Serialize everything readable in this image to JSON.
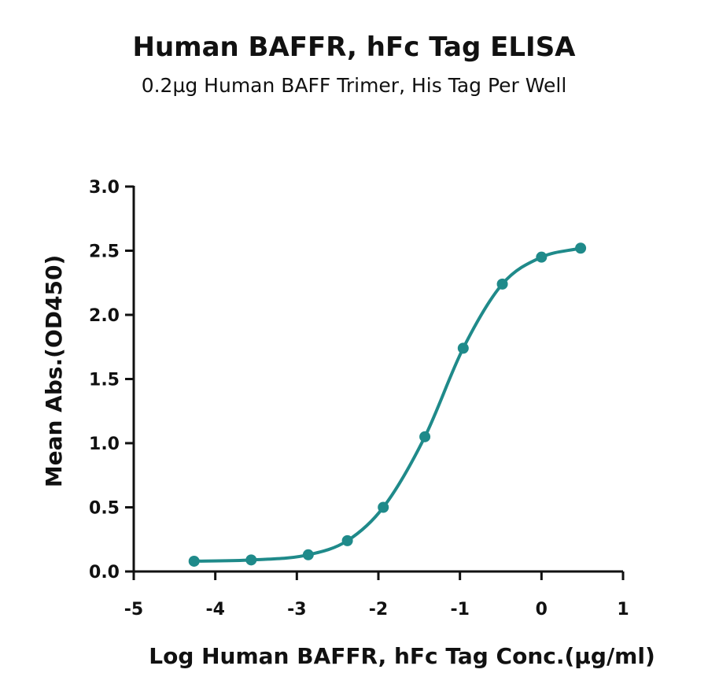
{
  "chart_data": {
    "type": "line",
    "title": "Human BAFFR, hFc Tag ELISA",
    "subtitle": "0.2µg Human BAFF Trimer, His Tag Per Well",
    "xlabel": "Log Human BAFFR, hFc Tag Conc.(µg/ml)",
    "ylabel": "Mean Abs.(OD450)",
    "xlim": [
      -5,
      1
    ],
    "ylim": [
      0,
      3
    ],
    "x_ticks": [
      -5,
      -4,
      -3,
      -2,
      -1,
      0,
      1
    ],
    "x_tick_labels": [
      "-5",
      "-4",
      "-3",
      "-2",
      "-1",
      "0",
      "1"
    ],
    "y_ticks": [
      0,
      0.5,
      1,
      1.5,
      2,
      2.5,
      3
    ],
    "y_tick_labels": [
      "0.0",
      "0.5",
      "1.0",
      "1.5",
      "2.0",
      "2.5",
      "3.0"
    ],
    "grid": false,
    "color": "#1f8a8a",
    "series": [
      {
        "x": [
          -4.26,
          -3.56,
          -2.86,
          -2.38,
          -1.94,
          -1.43,
          -0.96,
          -0.48,
          0.0,
          0.48
        ],
        "y": [
          0.08,
          0.09,
          0.13,
          0.24,
          0.5,
          1.05,
          1.74,
          2.24,
          2.45,
          2.52
        ]
      }
    ]
  }
}
